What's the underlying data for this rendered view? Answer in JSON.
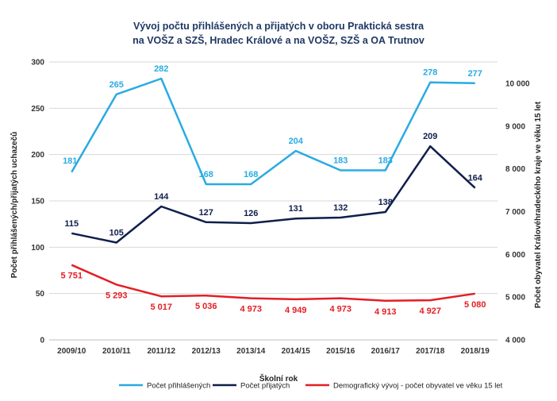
{
  "chart_data": {
    "type": "line",
    "title_lines": [
      "Vývoj počtu přihlášených a přijatých v oboru Praktická sestra",
      "na VOŠZ a SZŠ, Hradec Králové a na VOŠZ, SZŠ a OA Trutnov"
    ],
    "xlabel": "Školní rok",
    "ylabel_left": "Počet přihlášených/přijatých uchazečů",
    "ylabel_right": "Počet obyvatel Královéhradeckého kraje ve věku 15 let",
    "categories": [
      "2009/10",
      "2010/11",
      "2011/12",
      "2012/13",
      "2013/14",
      "2014/15",
      "2015/16",
      "2016/17",
      "2017/18",
      "2018/19"
    ],
    "ylim_left": [
      0,
      300
    ],
    "yticks_left": [
      0,
      50,
      100,
      150,
      200,
      250,
      300
    ],
    "ylim_right": [
      4000,
      10500
    ],
    "yticks_right": [
      {
        "value": 4000,
        "label": "4 000"
      },
      {
        "value": 5000,
        "label": "5 000"
      },
      {
        "value": 6000,
        "label": "6 000"
      },
      {
        "value": 7000,
        "label": "7 000"
      },
      {
        "value": 8000,
        "label": "8 000"
      },
      {
        "value": 9000,
        "label": "9 000"
      },
      {
        "value": 10000,
        "label": "10 000"
      }
    ],
    "grid": true,
    "legend_position": "bottom",
    "series": [
      {
        "name": "Počet přihlášených",
        "axis": "left",
        "color": "#29abe2",
        "values": [
          181,
          265,
          282,
          168,
          168,
          204,
          183,
          183,
          278,
          277
        ],
        "labels": [
          "181",
          "265",
          "282",
          "168",
          "168",
          "204",
          "183",
          "183",
          "278",
          "277"
        ]
      },
      {
        "name": "Počet přijatých",
        "axis": "left",
        "color": "#0f1f4b",
        "values": [
          115,
          105,
          144,
          127,
          126,
          131,
          132,
          138,
          209,
          164
        ],
        "labels": [
          "115",
          "105",
          "144",
          "127",
          "126",
          "131",
          "132",
          "138",
          "209",
          "164"
        ]
      },
      {
        "name": "Demografický vývoj - počet obyvatel ve věku 15 let",
        "axis": "right",
        "color": "#e31e24",
        "values": [
          5751,
          5293,
          5017,
          5036,
          4973,
          4949,
          4973,
          4913,
          4927,
          5080
        ],
        "labels": [
          "5 751",
          "5 293",
          "5 017",
          "5 036",
          "4 973",
          "4 949",
          "4 973",
          "4 913",
          "4 927",
          "5 080"
        ]
      }
    ]
  }
}
